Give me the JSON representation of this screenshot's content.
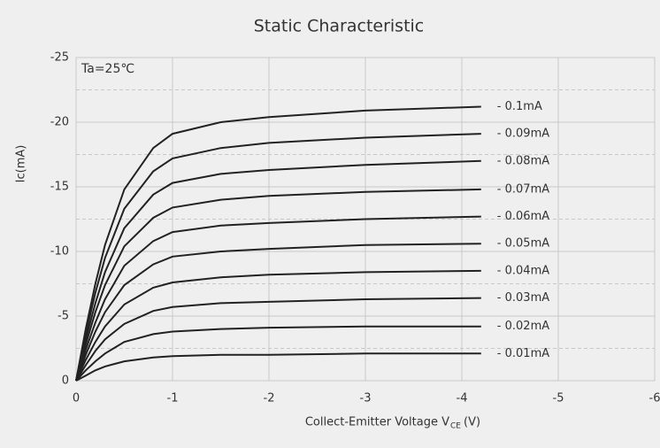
{
  "chart_data": {
    "type": "line",
    "title": "Static Characteristic",
    "annotation": "Ta=25℃",
    "ylabel": "Ic(mA)",
    "xlabel": {
      "main": "Collect-Emitter Voltage  V",
      "sub": "CE",
      "unit": "(V)"
    },
    "xlim": [
      0,
      -6
    ],
    "xticks": [
      0,
      -1,
      -2,
      -3,
      -4,
      -5,
      -6
    ],
    "ylim": [
      0,
      -25
    ],
    "yticks": [
      -25,
      -20,
      -15,
      -10,
      -5,
      0
    ],
    "minor_yticks": [
      -22.5,
      -17.5,
      -12.5,
      -7.5,
      -2.5
    ],
    "grid": true,
    "x": [
      0,
      -0.1,
      -0.2,
      -0.3,
      -0.5,
      -0.8,
      -1,
      -1.5,
      -2,
      -3,
      -4.2
    ],
    "series": [
      {
        "name": "- 0.1mA",
        "color": "#222222",
        "values": [
          0,
          -4,
          -7.5,
          -10.5,
          -14.8,
          -18,
          -19.1,
          -20,
          -20.4,
          -20.9,
          -21.2
        ]
      },
      {
        "name": "- 0.09mA",
        "color": "#222222",
        "values": [
          0,
          -3.6,
          -6.8,
          -9.5,
          -13.3,
          -16.2,
          -17.2,
          -18,
          -18.4,
          -18.8,
          -19.1
        ]
      },
      {
        "name": "- 0.08mA",
        "color": "#222222",
        "values": [
          0,
          -3.2,
          -6,
          -8.4,
          -11.8,
          -14.4,
          -15.3,
          -16,
          -16.3,
          -16.7,
          -17
        ]
      },
      {
        "name": "- 0.07mA",
        "color": "#222222",
        "values": [
          0,
          -2.8,
          -5.3,
          -7.4,
          -10.4,
          -12.6,
          -13.4,
          -14,
          -14.3,
          -14.6,
          -14.8
        ]
      },
      {
        "name": "- 0.06mA",
        "color": "#222222",
        "values": [
          0,
          -2.4,
          -4.5,
          -6.3,
          -8.9,
          -10.8,
          -11.5,
          -12,
          -12.2,
          -12.5,
          -12.7
        ]
      },
      {
        "name": "- 0.05mA",
        "color": "#222222",
        "values": [
          0,
          -2,
          -3.8,
          -5.3,
          -7.4,
          -9,
          -9.6,
          -10,
          -10.2,
          -10.5,
          -10.6
        ]
      },
      {
        "name": "- 0.04mA",
        "color": "#222222",
        "values": [
          0,
          -1.6,
          -3,
          -4.2,
          -5.9,
          -7.2,
          -7.6,
          -8,
          -8.2,
          -8.4,
          -8.5
        ]
      },
      {
        "name": "- 0.03mA",
        "color": "#222222",
        "values": [
          0,
          -1.2,
          -2.3,
          -3.2,
          -4.4,
          -5.4,
          -5.7,
          -6,
          -6.1,
          -6.3,
          -6.4
        ]
      },
      {
        "name": "- 0.02mA",
        "color": "#222222",
        "values": [
          0,
          -0.8,
          -1.5,
          -2.1,
          -3,
          -3.6,
          -3.8,
          -4,
          -4.1,
          -4.2,
          -4.2
        ]
      },
      {
        "name": "- 0.01mA",
        "color": "#222222",
        "values": [
          0,
          -0.4,
          -0.8,
          -1.1,
          -1.5,
          -1.8,
          -1.9,
          -2,
          -2,
          -2.1,
          -2.1
        ]
      }
    ]
  }
}
